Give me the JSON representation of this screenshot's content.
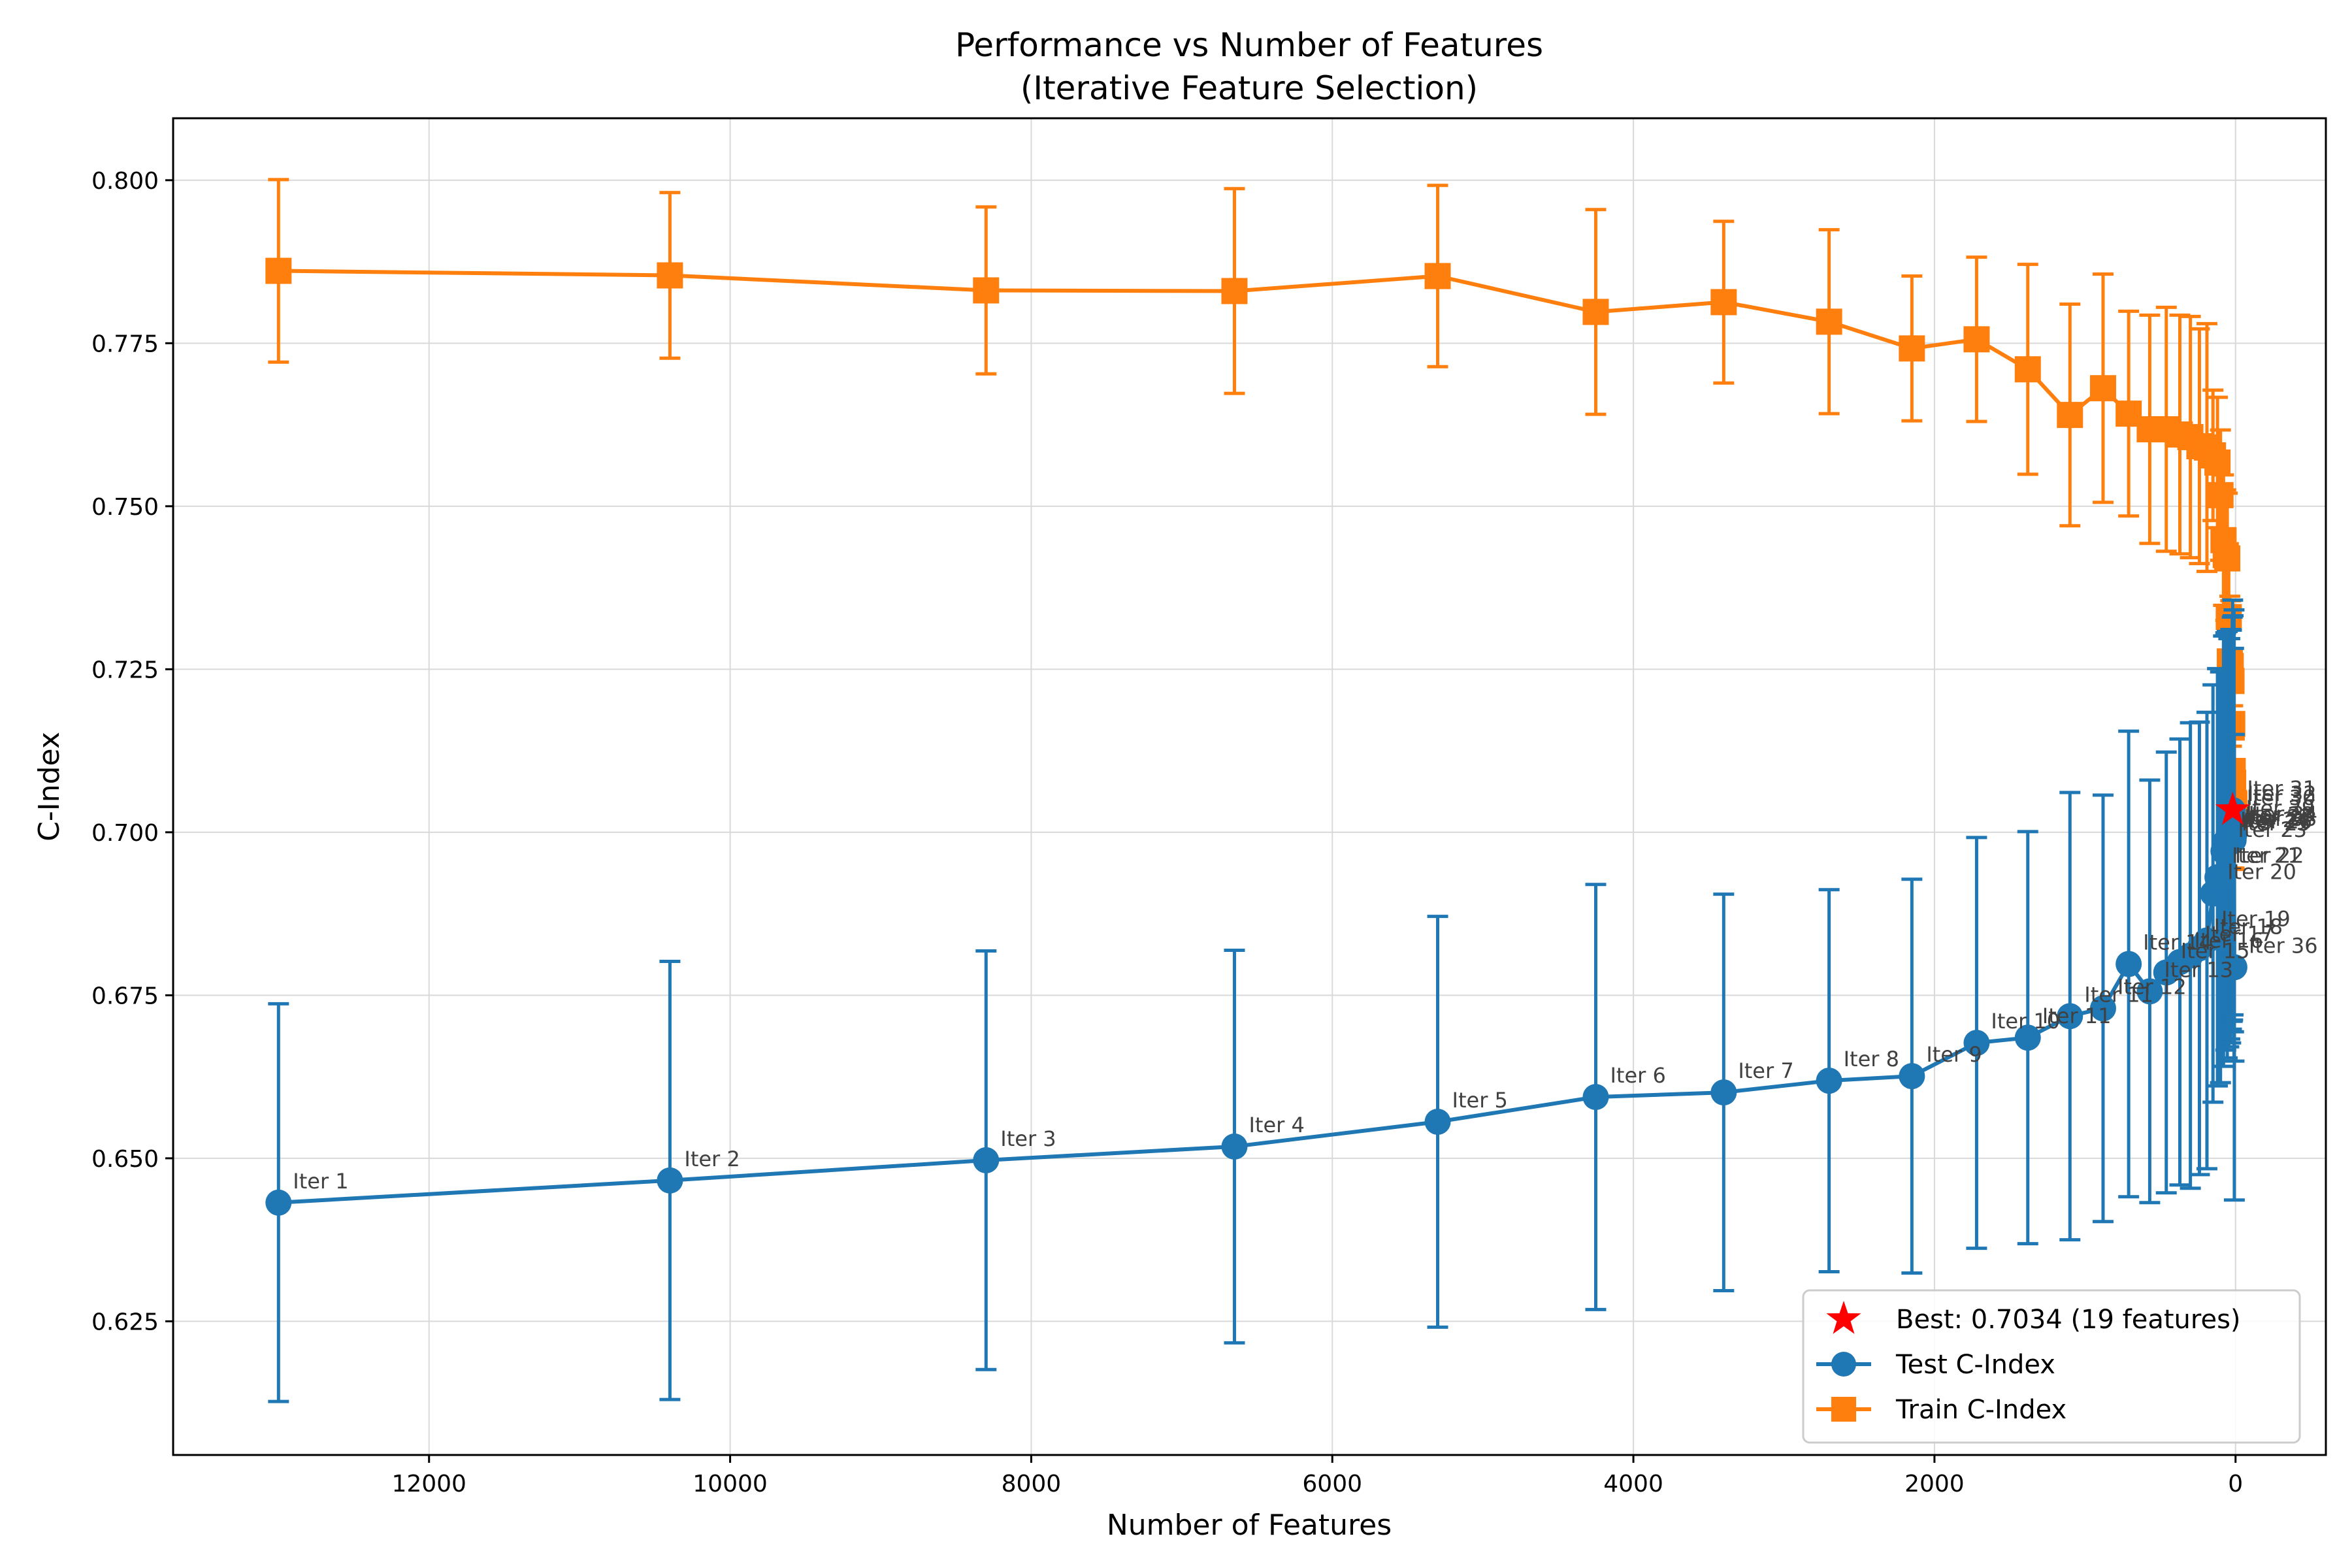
{
  "chart_data": {
    "type": "line",
    "title": "Performance vs Number of Features",
    "subtitle": "(Iterative Feature Selection)",
    "xlabel": "Number of Features",
    "ylabel": "C-Index",
    "xlim": [
      13700,
      -600
    ],
    "ylim": [
      0.6045,
      0.8095
    ],
    "x_reversed": true,
    "grid": true,
    "x_ticks": [
      12000,
      10000,
      8000,
      6000,
      4000,
      2000,
      0
    ],
    "x_tick_labels": [
      "12000",
      "10000",
      "8000",
      "6000",
      "4000",
      "2000",
      "0"
    ],
    "y_ticks": [
      0.625,
      0.65,
      0.675,
      0.7,
      0.725,
      0.75,
      0.775,
      0.8
    ],
    "y_tick_labels": [
      "0.625",
      "0.650",
      "0.675",
      "0.700",
      "0.725",
      "0.750",
      "0.775",
      "0.800"
    ],
    "legend_position": "lower-right",
    "best": {
      "label": "Best: 0.7034 (19 features)",
      "x": 19,
      "y": 0.7034,
      "color": "#ff0000"
    },
    "series": [
      {
        "name": "Test C-Index",
        "color": "#1f77b4",
        "marker": "circle",
        "x": [
          13000,
          10400,
          8300,
          6650,
          5300,
          4250,
          3400,
          2700,
          2150,
          1720,
          1380,
          1100,
          880,
          710,
          570,
          460,
          370,
          300,
          240,
          190,
          150,
          120,
          100,
          80,
          65,
          55,
          45,
          38,
          32,
          27,
          22,
          19,
          16,
          13,
          10,
          8
        ],
        "y": [
          0.6432,
          0.6466,
          0.6497,
          0.6518,
          0.6556,
          0.6594,
          0.6601,
          0.6619,
          0.6626,
          0.6677,
          0.6685,
          0.6718,
          0.673,
          0.6798,
          0.6756,
          0.6785,
          0.6801,
          0.6811,
          0.6822,
          0.6834,
          0.6906,
          0.6931,
          0.6931,
          0.6971,
          0.6986,
          0.6981,
          0.6984,
          0.699,
          0.6994,
          0.7004,
          0.702,
          0.7034,
          0.7026,
          0.6988,
          0.6995,
          0.6793
        ],
        "err": [
          0.0305,
          0.0336,
          0.0321,
          0.0301,
          0.0315,
          0.0326,
          0.0304,
          0.0293,
          0.0302,
          0.0315,
          0.0316,
          0.0343,
          0.0327,
          0.0357,
          0.0324,
          0.0338,
          0.0342,
          0.0357,
          0.0347,
          0.035,
          0.032,
          0.032,
          0.0315,
          0.033,
          0.032,
          0.0327,
          0.0313,
          0.0307,
          0.0317,
          0.0306,
          0.031,
          0.0322,
          0.0306,
          0.0294,
          0.0346,
          0.0357
        ],
        "labels": [
          "Iter 1",
          "Iter 2",
          "Iter 3",
          "Iter 4",
          "Iter 5",
          "Iter 6",
          "Iter 7",
          "Iter 8",
          "Iter 9",
          "Iter 10",
          "Iter 11",
          "Iter 11",
          "Iter 12",
          "Iter 14",
          "Iter 13",
          "Iter 15",
          "Iter 16",
          "Iter 17",
          "Iter 18",
          "Iter 19",
          "Iter 20",
          "Iter 21",
          "Iter 22",
          "Iter 23",
          "Iter 24",
          "Iter 25",
          "Iter 26",
          "Iter 27",
          "Iter 28",
          "Iter 29",
          "Iter 30",
          "Iter 31",
          "Iter 32",
          "Iter 33",
          "Iter 34",
          "Iter 36"
        ]
      },
      {
        "name": "Train C-Index",
        "color": "#ff7f0e",
        "marker": "square",
        "x": [
          13000,
          10400,
          8300,
          6650,
          5300,
          4250,
          3400,
          2700,
          2150,
          1720,
          1380,
          1100,
          880,
          710,
          570,
          460,
          370,
          300,
          240,
          190,
          150,
          120,
          100,
          80,
          65,
          55,
          45,
          38,
          32,
          27,
          22,
          19,
          16,
          13,
          10,
          8
        ],
        "y": [
          0.7861,
          0.7854,
          0.7831,
          0.783,
          0.7853,
          0.7798,
          0.7813,
          0.7783,
          0.7742,
          0.7756,
          0.771,
          0.764,
          0.7681,
          0.7642,
          0.7618,
          0.7618,
          0.761,
          0.7606,
          0.7592,
          0.759,
          0.7578,
          0.7567,
          0.7517,
          0.7448,
          0.7425,
          0.742,
          0.733,
          0.7262,
          0.7255,
          0.7232,
          0.7166,
          0.7094,
          0.7076,
          0.7045,
          0.7045,
          0.7043
        ],
        "err": [
          0.014,
          0.0127,
          0.0128,
          0.0157,
          0.0139,
          0.0157,
          0.0124,
          0.0141,
          0.0111,
          0.0126,
          0.0161,
          0.017,
          0.0175,
          0.0157,
          0.0175,
          0.0187,
          0.0183,
          0.0185,
          0.018,
          0.019,
          0.01,
          0.01,
          0.01,
          0.01,
          0.01,
          0.01,
          0.01,
          0.01,
          0.01,
          0.01,
          0.01,
          0.01,
          0.01,
          0.01,
          0.01,
          0.01
        ]
      }
    ]
  }
}
